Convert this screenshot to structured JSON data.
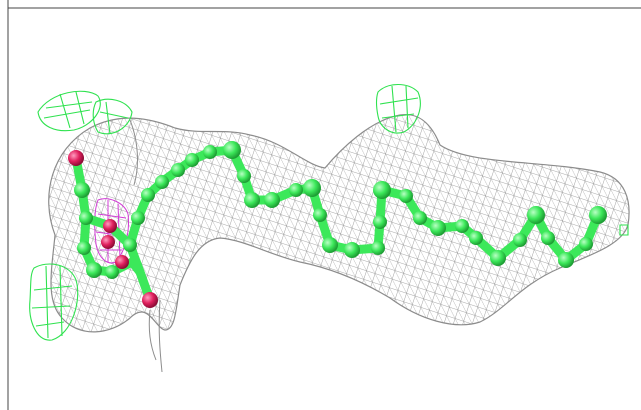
{
  "image": {
    "description_free": true,
    "colors": {
      "background": "#ffffff",
      "mesh": "#8c8c8c",
      "carbon": "#3ce85a",
      "oxygen": "#e0205e",
      "positive_density": "#2fe24f",
      "negative_density": "#d23cd6",
      "frame_line": "#444444"
    }
  }
}
